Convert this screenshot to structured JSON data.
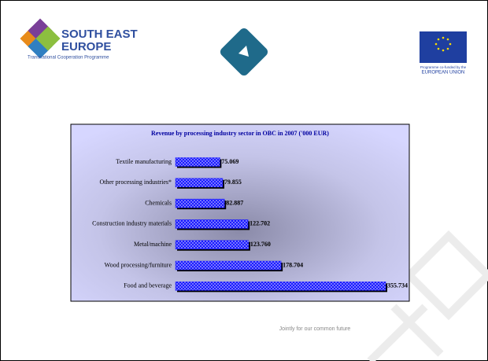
{
  "header": {
    "logo_line1": "SOUTH EAST",
    "logo_line2": "EUROPE",
    "logo_sub": "Transnational Cooperation Programme",
    "eu_line1": "Programme co-funded by the",
    "eu_line2": "EUROPEAN UNION"
  },
  "footer": {
    "text": "Jointly for our common future"
  },
  "chart_data": {
    "type": "bar",
    "orientation": "horizontal",
    "title": "Revenue by processing industry sector in OBC in 2007 ('000 EUR)",
    "categories": [
      "Textile manufacturing",
      "Other processing industries*",
      "Chemicals",
      "Construction industry materials",
      "Metal/machine",
      "Wood processing/furniture",
      "Food and beverage"
    ],
    "values": [
      75.069,
      79.855,
      82.887,
      122.702,
      123.76,
      178.704,
      355.734
    ],
    "value_labels": [
      "75.069",
      "79.855",
      "82.887",
      "122.702",
      "123.760",
      "178.704",
      "355.734"
    ],
    "color": "#1a1aff",
    "xlim": [
      0,
      355.734
    ]
  }
}
